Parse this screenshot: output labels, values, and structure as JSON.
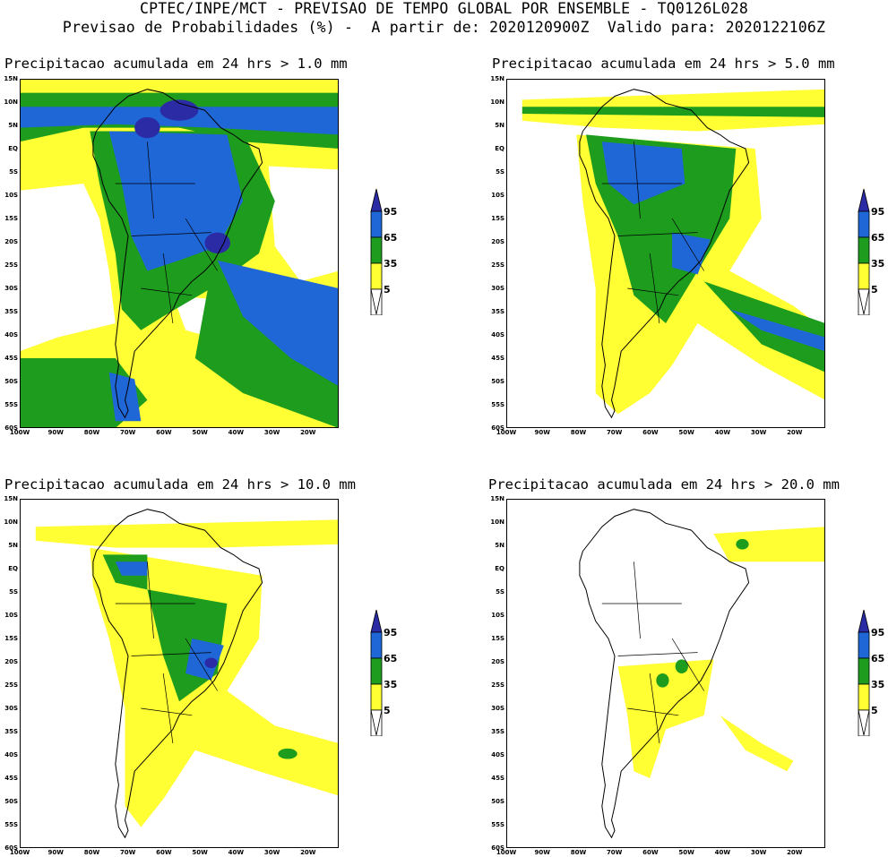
{
  "header": {
    "line1": "CPTEC/INPE/MCT - PREVISAO DE TEMPO GLOBAL POR ENSEMBLE - TQ0126L028",
    "line2": "Previsao de Probabilidades (%) -  A partir de: 2020120900Z  Valido para: 2020122106Z"
  },
  "panels": [
    {
      "title": "Precipitacao acumulada em 24 hrs > 1.0 mm"
    },
    {
      "title": "Precipitacao acumulada em 24 hrs > 5.0 mm"
    },
    {
      "title": "Precipitacao acumulada em 24 hrs > 10.0 mm"
    },
    {
      "title": "Precipitacao acumulada em 24 hrs > 20.0 mm"
    }
  ],
  "lat_labels": [
    "15N",
    "10N",
    "5N",
    "EQ",
    "5S",
    "10S",
    "15S",
    "20S",
    "25S",
    "30S",
    "35S",
    "40S",
    "45S",
    "50S",
    "55S",
    "60S"
  ],
  "lon_labels": [
    "100W",
    "90W",
    "80W",
    "70W",
    "60W",
    "50W",
    "40W",
    "30W",
    "20W"
  ],
  "colorbar": {
    "labels": [
      "95",
      "65",
      "35",
      "5"
    ],
    "colors": {
      "c5": "#ffff33",
      "c35": "#1e9c1e",
      "c65": "#1f66d6",
      "c95": "#2b2ba6"
    }
  }
}
